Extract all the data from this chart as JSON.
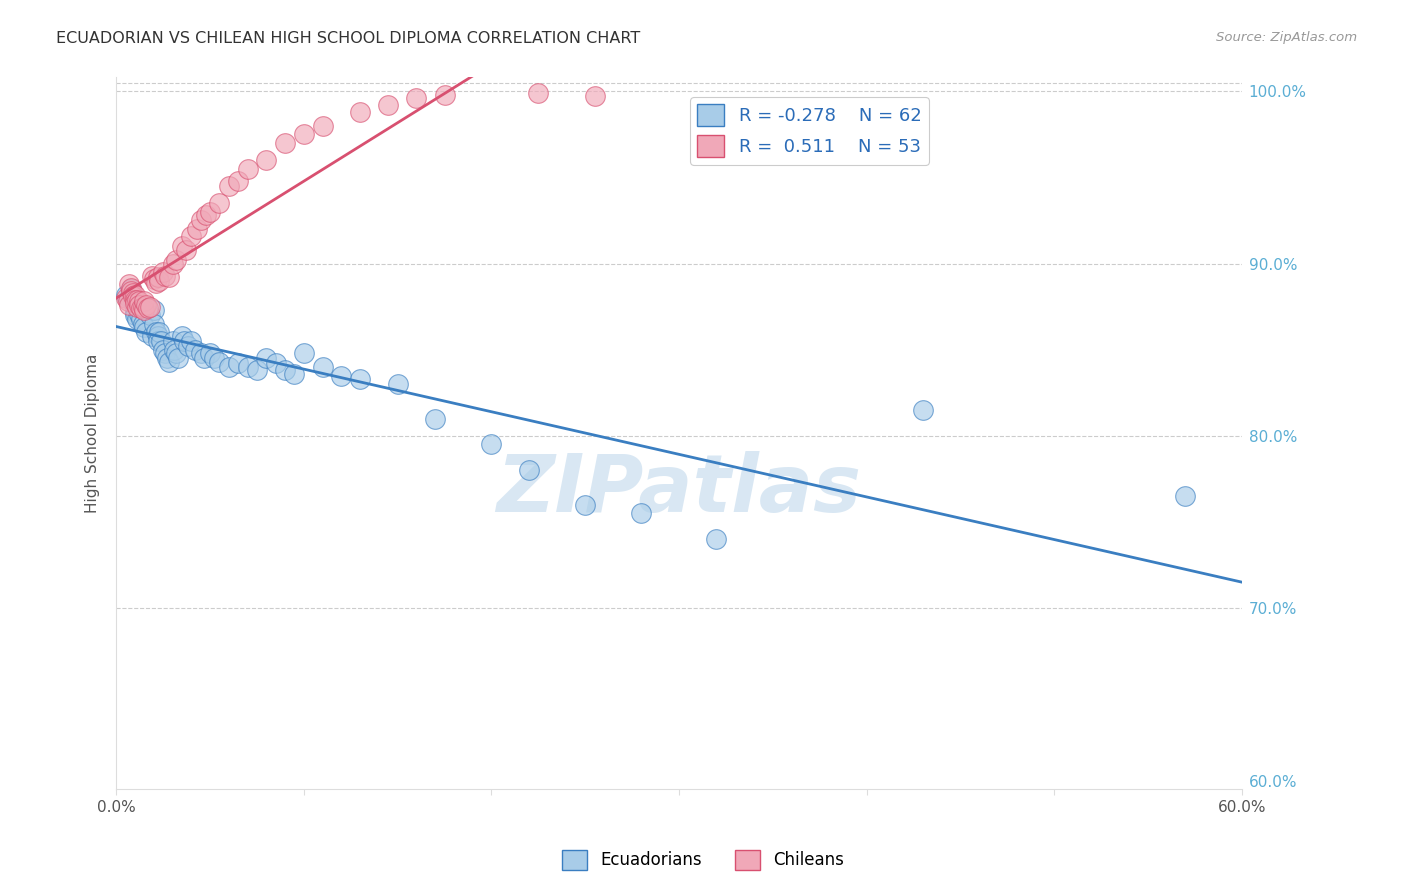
{
  "title": "ECUADORIAN VS CHILEAN HIGH SCHOOL DIPLOMA CORRELATION CHART",
  "source": "Source: ZipAtlas.com",
  "ylabel": "High School Diploma",
  "xlim": [
    0.0,
    0.6
  ],
  "ylim": [
    0.595,
    1.008
  ],
  "blue_color": "#A8CCE8",
  "pink_color": "#F0A8B8",
  "blue_line_color": "#3A7EC1",
  "pink_line_color": "#D85070",
  "watermark": "ZIPatlas",
  "watermark_color": "#C0D8EC",
  "legend_r_blue": "R = -0.278",
  "legend_n_blue": "N = 62",
  "legend_r_pink": "R =  0.511",
  "legend_n_pink": "N = 53",
  "blue_scatter_x": [
    0.005,
    0.007,
    0.008,
    0.009,
    0.01,
    0.01,
    0.01,
    0.011,
    0.012,
    0.012,
    0.013,
    0.014,
    0.015,
    0.016,
    0.018,
    0.019,
    0.02,
    0.02,
    0.021,
    0.022,
    0.022,
    0.023,
    0.024,
    0.025,
    0.026,
    0.027,
    0.028,
    0.03,
    0.031,
    0.032,
    0.033,
    0.035,
    0.036,
    0.038,
    0.04,
    0.042,
    0.045,
    0.047,
    0.05,
    0.052,
    0.055,
    0.06,
    0.065,
    0.07,
    0.075,
    0.08,
    0.085,
    0.09,
    0.095,
    0.1,
    0.11,
    0.12,
    0.13,
    0.15,
    0.17,
    0.2,
    0.22,
    0.25,
    0.28,
    0.32,
    0.43,
    0.57
  ],
  "blue_scatter_y": [
    0.882,
    0.88,
    0.885,
    0.878,
    0.875,
    0.872,
    0.87,
    0.868,
    0.875,
    0.871,
    0.868,
    0.865,
    0.863,
    0.86,
    0.87,
    0.858,
    0.873,
    0.865,
    0.86,
    0.858,
    0.855,
    0.86,
    0.855,
    0.85,
    0.848,
    0.845,
    0.843,
    0.855,
    0.85,
    0.848,
    0.845,
    0.858,
    0.855,
    0.852,
    0.855,
    0.85,
    0.848,
    0.845,
    0.848,
    0.845,
    0.843,
    0.84,
    0.842,
    0.84,
    0.838,
    0.845,
    0.842,
    0.838,
    0.836,
    0.848,
    0.84,
    0.835,
    0.833,
    0.83,
    0.81,
    0.795,
    0.78,
    0.76,
    0.755,
    0.74,
    0.815,
    0.765
  ],
  "pink_scatter_x": [
    0.005,
    0.006,
    0.007,
    0.007,
    0.008,
    0.008,
    0.009,
    0.009,
    0.01,
    0.01,
    0.01,
    0.011,
    0.011,
    0.012,
    0.012,
    0.013,
    0.014,
    0.015,
    0.015,
    0.016,
    0.017,
    0.018,
    0.019,
    0.02,
    0.021,
    0.022,
    0.023,
    0.025,
    0.026,
    0.028,
    0.03,
    0.032,
    0.035,
    0.037,
    0.04,
    0.043,
    0.045,
    0.048,
    0.05,
    0.055,
    0.06,
    0.065,
    0.07,
    0.08,
    0.09,
    0.1,
    0.11,
    0.13,
    0.145,
    0.16,
    0.175,
    0.225,
    0.255
  ],
  "pink_scatter_y": [
    0.88,
    0.878,
    0.876,
    0.888,
    0.886,
    0.884,
    0.883,
    0.881,
    0.882,
    0.879,
    0.877,
    0.875,
    0.879,
    0.878,
    0.876,
    0.874,
    0.875,
    0.873,
    0.878,
    0.876,
    0.874,
    0.875,
    0.893,
    0.891,
    0.889,
    0.892,
    0.89,
    0.895,
    0.893,
    0.892,
    0.9,
    0.902,
    0.91,
    0.908,
    0.916,
    0.92,
    0.925,
    0.928,
    0.93,
    0.935,
    0.945,
    0.948,
    0.955,
    0.96,
    0.97,
    0.975,
    0.98,
    0.988,
    0.992,
    0.996,
    0.998,
    0.999,
    0.997
  ]
}
